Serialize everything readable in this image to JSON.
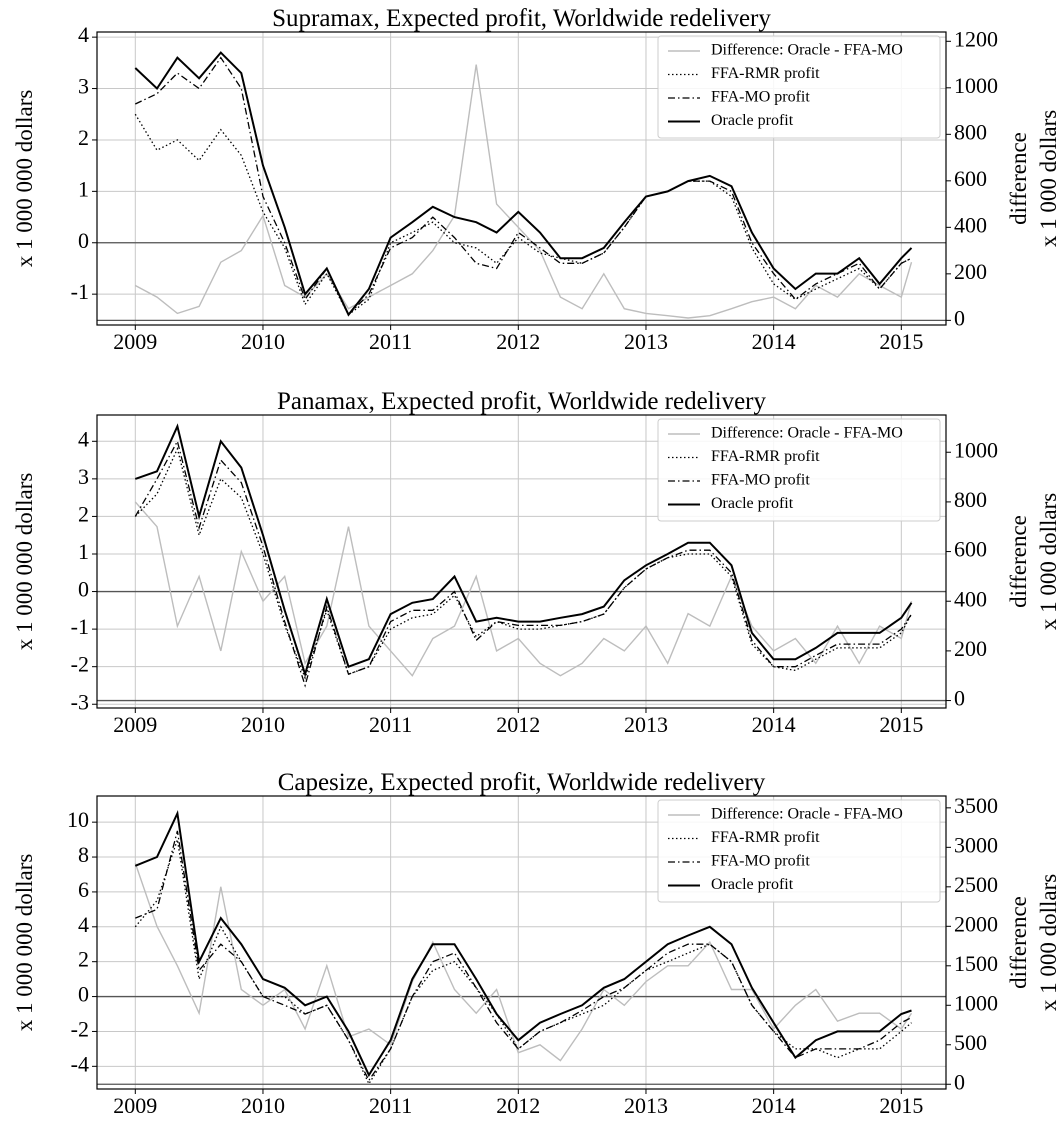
{
  "chart_data": [
    {
      "type": "line",
      "title": "Supramax, Expected profit, Worldwide redelivery",
      "ylabel": "x 1 000 000 dollars",
      "y2label": [
        "difference",
        "x 1 000 dollars"
      ],
      "x": [
        2009.0,
        2009.17,
        2009.33,
        2009.5,
        2009.67,
        2009.83,
        2010.0,
        2010.17,
        2010.33,
        2010.5,
        2010.67,
        2010.83,
        2011.0,
        2011.17,
        2011.33,
        2011.5,
        2011.67,
        2011.83,
        2012.0,
        2012.17,
        2012.33,
        2012.5,
        2012.67,
        2012.83,
        2013.0,
        2013.17,
        2013.33,
        2013.5,
        2013.67,
        2013.83,
        2014.0,
        2014.17,
        2014.33,
        2014.5,
        2014.67,
        2014.83,
        2015.0,
        2015.08
      ],
      "xlim": [
        2008.7,
        2015.35
      ],
      "xticks": [
        2009,
        2010,
        2011,
        2012,
        2013,
        2014,
        2015
      ],
      "ylim": [
        -1.6,
        4.1
      ],
      "yticks": [
        -1,
        0,
        1,
        2,
        3,
        4
      ],
      "y2lim": [
        -20,
        1240
      ],
      "y2ticks": [
        0,
        200,
        400,
        600,
        800,
        1000,
        1200
      ],
      "grid": true,
      "legend": "upper right",
      "series": [
        {
          "name": "Difference: Oracle - FFA-MO",
          "color": "#bdbdbd",
          "linestyle": "solid",
          "axis": "y2",
          "values": [
            150,
            100,
            30,
            60,
            250,
            300,
            450,
            150,
            100,
            200,
            50,
            100,
            150,
            200,
            300,
            450,
            1100,
            500,
            400,
            300,
            100,
            50,
            200,
            50,
            30,
            20,
            10,
            20,
            50,
            80,
            100,
            50,
            150,
            100,
            200,
            150,
            100,
            250
          ]
        },
        {
          "name": "FFA-RMR profit",
          "color": "#000000",
          "linestyle": "dotted",
          "values": [
            2.5,
            1.8,
            2.0,
            1.6,
            2.2,
            1.7,
            0.6,
            -0.1,
            -1.2,
            -0.6,
            -1.4,
            -1.1,
            0.0,
            0.2,
            0.4,
            0.0,
            -0.1,
            -0.4,
            0.1,
            -0.2,
            -0.3,
            -0.4,
            -0.2,
            0.3,
            0.9,
            1.0,
            1.2,
            1.2,
            0.9,
            -0.1,
            -0.8,
            -1.1,
            -0.9,
            -0.7,
            -0.5,
            -0.9,
            -0.4,
            -0.3
          ]
        },
        {
          "name": "FFA-MO profit",
          "color": "#000000",
          "linestyle": "dashdot",
          "values": [
            2.7,
            2.9,
            3.3,
            3.0,
            3.6,
            3.0,
            0.9,
            0.0,
            -1.1,
            -0.5,
            -1.4,
            -1.0,
            -0.1,
            0.1,
            0.5,
            0.1,
            -0.4,
            -0.5,
            0.2,
            -0.1,
            -0.4,
            -0.4,
            -0.2,
            0.3,
            0.9,
            1.0,
            1.2,
            1.2,
            1.0,
            0.0,
            -0.6,
            -1.1,
            -0.8,
            -0.6,
            -0.4,
            -0.9,
            -0.4,
            -0.3
          ]
        },
        {
          "name": "Oracle profit",
          "color": "#000000",
          "linestyle": "solid",
          "values": [
            3.4,
            3.0,
            3.6,
            3.2,
            3.7,
            3.3,
            1.5,
            0.3,
            -1.0,
            -0.5,
            -1.4,
            -0.9,
            0.1,
            0.4,
            0.7,
            0.5,
            0.4,
            0.2,
            0.6,
            0.2,
            -0.3,
            -0.3,
            -0.1,
            0.4,
            0.9,
            1.0,
            1.2,
            1.3,
            1.1,
            0.2,
            -0.5,
            -0.9,
            -0.6,
            -0.6,
            -0.3,
            -0.8,
            -0.3,
            -0.1
          ]
        }
      ]
    },
    {
      "type": "line",
      "title": "Panamax, Expected profit, Worldwide redelivery",
      "ylabel": "x 1 000 000 dollars",
      "y2label": [
        "difference",
        "x 1 000 dollars"
      ],
      "x": [
        2009.0,
        2009.17,
        2009.33,
        2009.5,
        2009.67,
        2009.83,
        2010.0,
        2010.17,
        2010.33,
        2010.5,
        2010.67,
        2010.83,
        2011.0,
        2011.17,
        2011.33,
        2011.5,
        2011.67,
        2011.83,
        2012.0,
        2012.17,
        2012.33,
        2012.5,
        2012.67,
        2012.83,
        2013.0,
        2013.17,
        2013.33,
        2013.5,
        2013.67,
        2013.83,
        2014.0,
        2014.17,
        2014.33,
        2014.5,
        2014.67,
        2014.83,
        2015.0,
        2015.08
      ],
      "xlim": [
        2008.7,
        2015.35
      ],
      "xticks": [
        2009,
        2010,
        2011,
        2012,
        2013,
        2014,
        2015
      ],
      "ylim": [
        -3.1,
        4.7
      ],
      "yticks": [
        -3,
        -2,
        -1,
        0,
        1,
        2,
        3,
        4
      ],
      "y2lim": [
        -30,
        1150
      ],
      "y2ticks": [
        0,
        200,
        400,
        600,
        800,
        1000
      ],
      "grid": true,
      "legend": "upper right",
      "series": [
        {
          "name": "Difference: Oracle - FFA-MO",
          "color": "#bdbdbd",
          "linestyle": "solid",
          "axis": "y2",
          "values": [
            800,
            700,
            300,
            500,
            200,
            600,
            400,
            500,
            150,
            300,
            700,
            300,
            200,
            100,
            250,
            300,
            500,
            200,
            250,
            150,
            100,
            150,
            250,
            200,
            300,
            150,
            350,
            300,
            500,
            300,
            200,
            250,
            150,
            300,
            150,
            300,
            250,
            400
          ]
        },
        {
          "name": "FFA-RMR profit",
          "color": "#000000",
          "linestyle": "dotted",
          "values": [
            2.0,
            2.6,
            3.8,
            1.5,
            3.0,
            2.5,
            1.0,
            -0.9,
            -2.3,
            -0.5,
            -2.2,
            -2.0,
            -1.0,
            -0.7,
            -0.6,
            -0.1,
            -1.2,
            -0.8,
            -1.0,
            -1.0,
            -0.9,
            -0.8,
            -0.6,
            0.1,
            0.6,
            0.9,
            1.0,
            1.0,
            0.4,
            -1.4,
            -2.0,
            -2.1,
            -1.8,
            -1.5,
            -1.5,
            -1.5,
            -1.1,
            -0.6
          ]
        },
        {
          "name": "FFA-MO profit",
          "color": "#000000",
          "linestyle": "dashdot",
          "values": [
            2.0,
            3.0,
            4.0,
            1.7,
            3.5,
            2.9,
            1.2,
            -0.8,
            -2.5,
            -0.4,
            -2.2,
            -2.0,
            -0.8,
            -0.5,
            -0.5,
            0.0,
            -1.3,
            -0.8,
            -0.9,
            -0.9,
            -0.9,
            -0.8,
            -0.6,
            0.1,
            0.6,
            0.9,
            1.1,
            1.1,
            0.5,
            -1.3,
            -2.0,
            -2.0,
            -1.7,
            -1.4,
            -1.4,
            -1.4,
            -1.0,
            -0.6
          ]
        },
        {
          "name": "Oracle profit",
          "color": "#000000",
          "linestyle": "solid",
          "values": [
            3.0,
            3.2,
            4.4,
            2.0,
            4.0,
            3.3,
            1.5,
            -0.5,
            -2.2,
            -0.2,
            -2.0,
            -1.8,
            -0.6,
            -0.3,
            -0.2,
            0.4,
            -0.8,
            -0.7,
            -0.8,
            -0.8,
            -0.7,
            -0.6,
            -0.4,
            0.3,
            0.7,
            1.0,
            1.3,
            1.3,
            0.7,
            -1.1,
            -1.8,
            -1.8,
            -1.5,
            -1.1,
            -1.1,
            -1.1,
            -0.7,
            -0.3
          ]
        }
      ]
    },
    {
      "type": "line",
      "title": "Capesize, Expected profit, Worldwide redelivery",
      "ylabel": "x 1 000 000 dollars",
      "y2label": [
        "difference",
        "x 1 000 dollars"
      ],
      "x": [
        2009.0,
        2009.17,
        2009.33,
        2009.5,
        2009.67,
        2009.83,
        2010.0,
        2010.17,
        2010.33,
        2010.5,
        2010.67,
        2010.83,
        2011.0,
        2011.17,
        2011.33,
        2011.5,
        2011.67,
        2011.83,
        2012.0,
        2012.17,
        2012.33,
        2012.5,
        2012.67,
        2012.83,
        2013.0,
        2013.17,
        2013.33,
        2013.5,
        2013.67,
        2013.83,
        2014.0,
        2014.17,
        2014.33,
        2014.5,
        2014.67,
        2014.83,
        2015.0,
        2015.08
      ],
      "xlim": [
        2008.7,
        2015.35
      ],
      "xticks": [
        2009,
        2010,
        2011,
        2012,
        2013,
        2014,
        2015
      ],
      "ylim": [
        -5.3,
        11.5
      ],
      "yticks": [
        -4,
        -2,
        0,
        2,
        4,
        6,
        8,
        10
      ],
      "y2lim": [
        -60,
        3650
      ],
      "y2ticks": [
        0,
        500,
        1000,
        1500,
        2000,
        2500,
        3000,
        3500
      ],
      "grid": true,
      "legend": "upper right",
      "series": [
        {
          "name": "Difference: Oracle - FFA-MO",
          "color": "#bdbdbd",
          "linestyle": "solid",
          "axis": "y2",
          "values": [
            2800,
            2000,
            1500,
            900,
            2500,
            1200,
            1000,
            1200,
            700,
            1500,
            600,
            700,
            500,
            1300,
            1800,
            1200,
            900,
            1200,
            400,
            500,
            300,
            700,
            1200,
            1000,
            1300,
            1500,
            1500,
            1800,
            1200,
            1200,
            700,
            1000,
            1200,
            800,
            900,
            900,
            700,
            900
          ]
        },
        {
          "name": "FFA-RMR profit",
          "color": "#000000",
          "linestyle": "dotted",
          "values": [
            4.0,
            5.5,
            9.0,
            1.0,
            4.0,
            2.0,
            0.0,
            0.0,
            -1.0,
            -0.5,
            -2.5,
            -5.0,
            -3.0,
            0.0,
            1.5,
            2.0,
            0.5,
            -1.0,
            -3.0,
            -2.0,
            -1.5,
            -1.0,
            -0.5,
            0.5,
            1.5,
            2.0,
            2.5,
            3.0,
            2.0,
            -0.5,
            -2.0,
            -3.0,
            -3.0,
            -3.5,
            -3.0,
            -3.0,
            -2.0,
            -1.5
          ]
        },
        {
          "name": "FFA-MO profit",
          "color": "#000000",
          "linestyle": "dashdot",
          "values": [
            4.5,
            5.0,
            9.5,
            1.5,
            3.0,
            2.0,
            0.0,
            -0.5,
            -1.0,
            -0.5,
            -2.5,
            -4.8,
            -3.0,
            0.0,
            2.0,
            2.5,
            0.5,
            -1.5,
            -3.0,
            -2.0,
            -1.5,
            -0.8,
            0.0,
            0.5,
            1.5,
            2.5,
            3.0,
            3.0,
            2.0,
            -0.5,
            -2.0,
            -3.5,
            -3.0,
            -3.0,
            -3.0,
            -2.5,
            -1.5,
            -1.2
          ]
        },
        {
          "name": "Oracle profit",
          "color": "#000000",
          "linestyle": "solid",
          "values": [
            7.5,
            8.0,
            10.5,
            2.0,
            4.5,
            3.0,
            1.0,
            0.5,
            -0.5,
            0.0,
            -2.0,
            -4.5,
            -2.5,
            1.0,
            3.0,
            3.0,
            1.0,
            -1.0,
            -2.5,
            -1.5,
            -1.0,
            -0.5,
            0.5,
            1.0,
            2.0,
            3.0,
            3.5,
            4.0,
            3.0,
            0.5,
            -1.5,
            -3.5,
            -2.5,
            -2.0,
            -2.0,
            -2.0,
            -1.0,
            -0.8
          ]
        }
      ]
    }
  ]
}
